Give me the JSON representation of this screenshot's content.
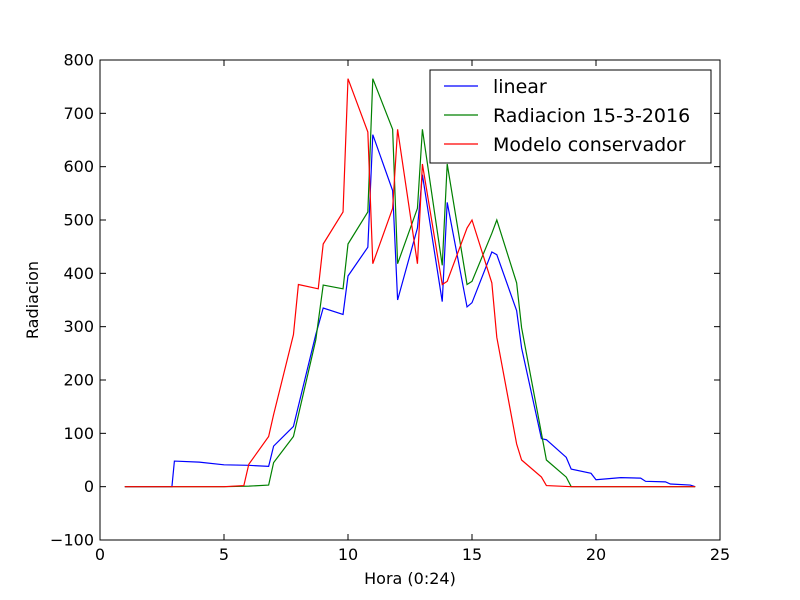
{
  "chart_data": {
    "type": "line",
    "title": "",
    "xlabel": "Hora (0:24)",
    "ylabel": "Radiacion",
    "xlim": [
      0,
      25
    ],
    "ylim": [
      -100,
      800
    ],
    "xticks": [
      0,
      5,
      10,
      15,
      20,
      25
    ],
    "yticks": [
      -100,
      0,
      100,
      200,
      300,
      400,
      500,
      600,
      700,
      800
    ],
    "grid": false,
    "legend_position": "top-right",
    "series": [
      {
        "name": "linear",
        "color": "#0000ff",
        "points": [
          [
            1,
            0
          ],
          [
            2.9,
            0
          ],
          [
            3.0,
            48
          ],
          [
            4,
            46
          ],
          [
            5,
            41
          ],
          [
            6,
            40
          ],
          [
            6.8,
            38
          ],
          [
            7.0,
            76
          ],
          [
            7.8,
            113
          ],
          [
            8.7,
            285
          ],
          [
            9.0,
            335
          ],
          [
            9.8,
            323
          ],
          [
            10.0,
            395
          ],
          [
            10.8,
            449
          ],
          [
            11.0,
            660
          ],
          [
            11.8,
            555
          ],
          [
            12.0,
            350
          ],
          [
            12.8,
            485
          ],
          [
            13.0,
            585
          ],
          [
            13.8,
            347
          ],
          [
            14.0,
            533
          ],
          [
            14.8,
            337
          ],
          [
            15.0,
            345
          ],
          [
            15.8,
            440
          ],
          [
            16.0,
            435
          ],
          [
            16.8,
            330
          ],
          [
            17.0,
            260
          ],
          [
            17.8,
            90
          ],
          [
            18.0,
            88
          ],
          [
            18.8,
            55
          ],
          [
            19.0,
            33
          ],
          [
            19.8,
            25
          ],
          [
            20.0,
            13
          ],
          [
            21,
            17
          ],
          [
            21.8,
            16
          ],
          [
            22.0,
            10
          ],
          [
            22.8,
            9
          ],
          [
            23.0,
            5
          ],
          [
            23.8,
            3
          ],
          [
            24,
            0
          ]
        ]
      },
      {
        "name": "Radiacion 15-3-2016",
        "color": "#008000",
        "points": [
          [
            1,
            0
          ],
          [
            5,
            0
          ],
          [
            6,
            1
          ],
          [
            6.8,
            3
          ],
          [
            7.0,
            45
          ],
          [
            7.8,
            94
          ],
          [
            8.7,
            275
          ],
          [
            9.0,
            378
          ],
          [
            9.8,
            371
          ],
          [
            10.0,
            455
          ],
          [
            10.8,
            515
          ],
          [
            11.0,
            765
          ],
          [
            11.8,
            670
          ],
          [
            12.0,
            418
          ],
          [
            12.8,
            522
          ],
          [
            13.0,
            670
          ],
          [
            13.8,
            415
          ],
          [
            14.0,
            605
          ],
          [
            14.8,
            379
          ],
          [
            15.0,
            385
          ],
          [
            15.8,
            475
          ],
          [
            16.0,
            500
          ],
          [
            16.8,
            382
          ],
          [
            17.0,
            298
          ],
          [
            17.8,
            100
          ],
          [
            18.0,
            50
          ],
          [
            18.8,
            18
          ],
          [
            19.0,
            0
          ],
          [
            24,
            0
          ]
        ]
      },
      {
        "name": "Modelo conservador",
        "color": "#ff0000",
        "points": [
          [
            1,
            0
          ],
          [
            5,
            0
          ],
          [
            5.8,
            2
          ],
          [
            6.0,
            42
          ],
          [
            6.8,
            94
          ],
          [
            7.0,
            135
          ],
          [
            7.8,
            285
          ],
          [
            8.0,
            379
          ],
          [
            8.8,
            371
          ],
          [
            9.0,
            455
          ],
          [
            9.8,
            515
          ],
          [
            10.0,
            765
          ],
          [
            10.8,
            665
          ],
          [
            11.0,
            418
          ],
          [
            11.8,
            522
          ],
          [
            12.0,
            670
          ],
          [
            12.8,
            418
          ],
          [
            13.0,
            605
          ],
          [
            13.8,
            379
          ],
          [
            14.0,
            385
          ],
          [
            14.8,
            485
          ],
          [
            15.0,
            500
          ],
          [
            15.8,
            382
          ],
          [
            16.0,
            280
          ],
          [
            16.8,
            80
          ],
          [
            17.0,
            50
          ],
          [
            17.8,
            18
          ],
          [
            18.0,
            2
          ],
          [
            19,
            0
          ],
          [
            24,
            0
          ]
        ]
      }
    ]
  }
}
